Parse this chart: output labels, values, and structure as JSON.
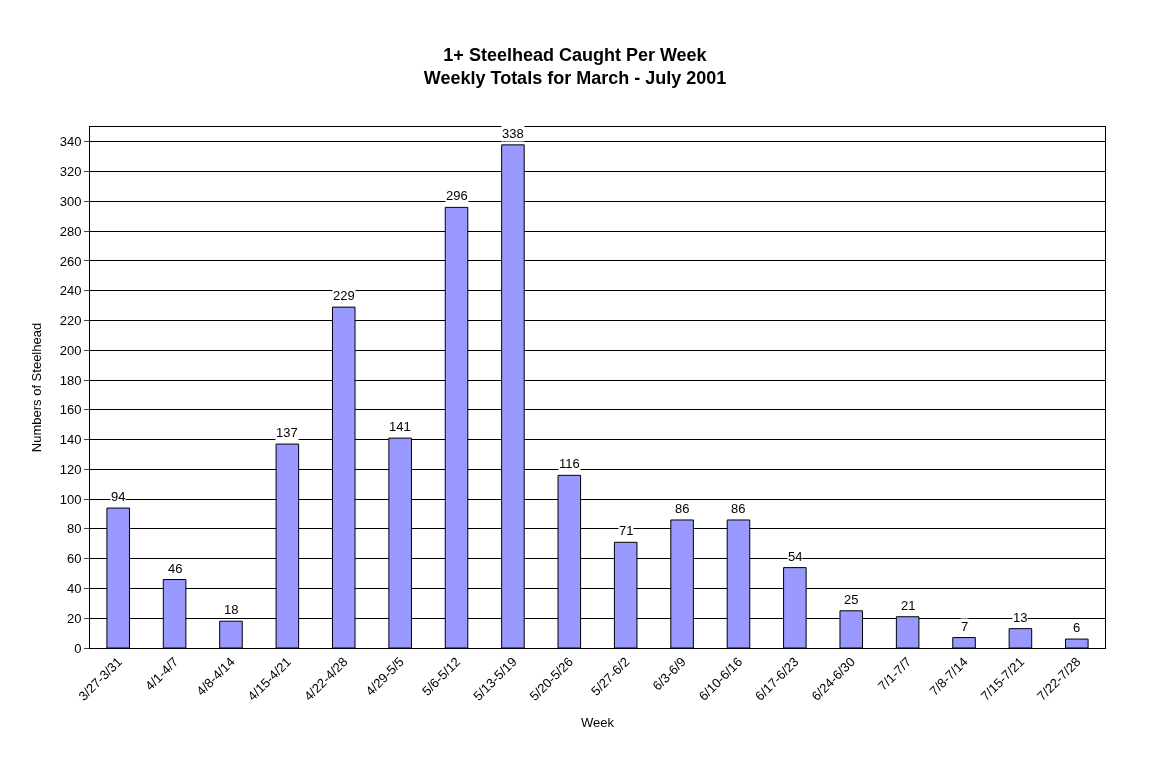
{
  "chart_data": {
    "type": "bar",
    "title": "1+ Steelhead Caught Per Week\nWeekly Totals for March - July 2001",
    "xlabel": "Week",
    "ylabel": "Numbers of Steelhead",
    "categories": [
      "3/27-3/31",
      "4/1-4/7",
      "4/8-4/14",
      "4/15-4/21",
      "4/22-4/28",
      "4/29-5/5",
      "5/6-5/12",
      "5/13-5/19",
      "5/20-5/26",
      "5/27-6/2",
      "6/3-6/9",
      "6/10-6/16",
      "6/17-6/23",
      "6/24-6/30",
      "7/1-7/7",
      "7/8-7/14",
      "7/15-7/21",
      "7/22-7/28"
    ],
    "values": [
      94,
      46,
      18,
      137,
      229,
      141,
      296,
      338,
      116,
      71,
      86,
      86,
      54,
      25,
      21,
      7,
      13,
      6
    ],
    "color": "#9999ff",
    "ylim": [
      0,
      350
    ],
    "yticks": [
      0,
      20,
      40,
      60,
      80,
      100,
      120,
      140,
      160,
      180,
      200,
      220,
      240,
      260,
      280,
      300,
      320,
      340
    ],
    "grid": "y",
    "data_labels": true
  }
}
